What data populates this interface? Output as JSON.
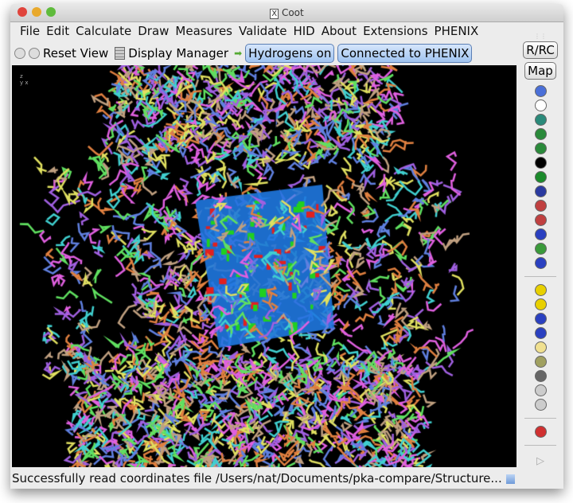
{
  "window": {
    "title": "Coot",
    "title_icon": "x11-icon"
  },
  "menu": [
    "File",
    "Edit",
    "Calculate",
    "Draw",
    "Measures",
    "Validate",
    "HID",
    "About",
    "Extensions",
    "PHENIX"
  ],
  "toolbar": {
    "reset_view": "Reset View",
    "display_manager": "Display Manager",
    "hydrogens": "Hydrogens on",
    "phenix": "Connected to PHENIX"
  },
  "side": {
    "rrc": "R/RC",
    "map": "Map",
    "icons1": [
      "rotate-translate-zone-icon",
      "auto-fit-rotamer-icon",
      "rotamers-icon",
      "edit-chi-angles-icon",
      "torsion-general-icon",
      "expand-arrow-icon",
      "flip-peptide-icon",
      "side-chain-180-icon",
      "edit-backbone-icon",
      "mutate-autofit-icon",
      "simple-mutate-icon",
      "add-side-chain-icon",
      "jed-flip-icon"
    ],
    "icons2": [
      "add-alt-conf-icon",
      "radioactive-icon",
      "place-atom-icon",
      "add-residue-icon",
      "add-terminal-icon",
      "clear-pending-icon",
      "delete-icon",
      "undo-icon",
      "redo-icon"
    ],
    "icons3": [
      "ramachandran-flag-icon"
    ],
    "play": "play-icon"
  },
  "viewport": {
    "axes": [
      "z",
      "y",
      "x"
    ],
    "density_color": "#1f78e0",
    "background": "#000000"
  },
  "status": "Successfully read coordinates file /Users/nat/Documents/pka-compare/Structure..."
}
